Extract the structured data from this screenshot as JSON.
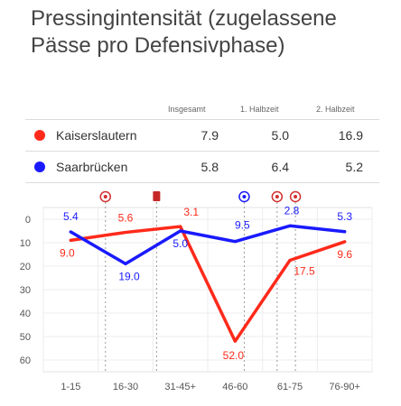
{
  "title": "Pressingintensität (zugelassene Pässe pro Defensivphase)",
  "table": {
    "headers": [
      "Insgesamt",
      "1. Halbzeit",
      "2. Halbzeit"
    ],
    "rows": [
      {
        "team": "Kaiserslautern",
        "color": "#ff2a1a",
        "values": [
          "7.9",
          "5.0",
          "16.9"
        ]
      },
      {
        "team": "Saarbrücken",
        "color": "#1a1aff",
        "values": [
          "5.8",
          "6.4",
          "5.2"
        ]
      }
    ]
  },
  "chart_data": {
    "type": "line",
    "categories": [
      "1-15",
      "16-30",
      "31-45+",
      "46-60",
      "61-75",
      "76-90+"
    ],
    "y_ticks": [
      "0",
      "10",
      "20",
      "30",
      "40",
      "50",
      "60"
    ],
    "ylim": [
      -5,
      65
    ],
    "y_inverted": true,
    "grid": true,
    "series": [
      {
        "name": "Kaiserslautern",
        "color": "#ff2a1a",
        "values": [
          9.0,
          5.6,
          3.1,
          52.0,
          17.5,
          9.6
        ],
        "labels": [
          "9.0",
          "5.6",
          "3.1",
          "52.0",
          "17.5",
          "9.6"
        ]
      },
      {
        "name": "Saarbrücken",
        "color": "#1a1aff",
        "values": [
          5.4,
          19.0,
          5.0,
          9.5,
          2.8,
          5.3
        ],
        "labels": [
          "5.4",
          "19.0",
          "5.0",
          "9.5",
          "2.8",
          "5.3"
        ]
      }
    ],
    "events": [
      {
        "minute": 17,
        "type": "goal-icon",
        "color": "#d32f2f"
      },
      {
        "minute": 31,
        "type": "red-card-icon",
        "color": "#c62828"
      },
      {
        "minute": 55,
        "type": "goal-icon",
        "color": "#1a1aff"
      },
      {
        "minute": 64,
        "type": "goal-icon",
        "color": "#d32f2f"
      },
      {
        "minute": 69,
        "type": "goal-icon",
        "color": "#d32f2f"
      }
    ]
  }
}
